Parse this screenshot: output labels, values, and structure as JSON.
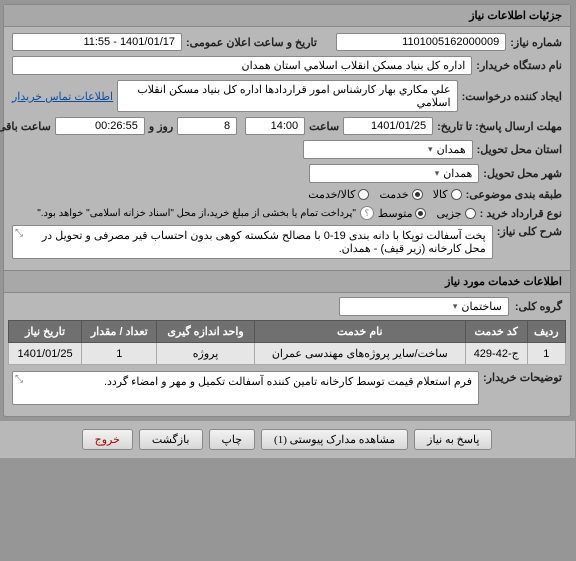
{
  "panel_title": "جزئیات اطلاعات نیاز",
  "rows": {
    "need_no_label": "شماره نیاز:",
    "need_no_value": "1101005162000009",
    "announce_label": "تاریخ و ساعت اعلان عمومی:",
    "announce_value": "1401/01/17 - 11:55",
    "buyer_label": "نام دستگاه خریدار:",
    "buyer_value": "اداره کل بنیاد مسکن انقلاب اسلامي استان همدان",
    "creator_label": "ایجاد کننده درخواست:",
    "creator_value": "علي مکاري بهار کارشناس امور قراردادها اداره کل بنیاد مسکن انقلاب اسلامي",
    "contact_link": "اطلاعات تماس خریدار",
    "deadline_label": "مهلت ارسال پاسخ: تا تاریخ:",
    "deadline_date": "1401/01/25",
    "time_label": "ساعت",
    "deadline_time": "14:00",
    "and_label": "و",
    "day_label": "روز",
    "remain_days": "8",
    "remain_time": "00:26:55",
    "remain_label": "ساعت باقی مانده",
    "province_label": "استان محل تحویل:",
    "province_value": "همدان",
    "city_label": "شهر محل تحویل:",
    "city_value": "همدان",
    "subject_type_label": "طبقه بندی موضوعی:",
    "radio_goods": "کالا",
    "radio_service": "خدمت",
    "radio_both": "کالا/خدمت",
    "contract_label": "نوع قرارداد خرید :",
    "radio_partial": "جزیی",
    "radio_medium": "متوسط",
    "contract_note": "\"پرداخت تمام یا بخشی از مبلغ خرید،از محل \"اسناد خزانه اسلامی\" خواهد بود.\"",
    "desc_label": "شرح کلی نیاز:",
    "desc_value": "پخت آسفالت توپکا با دانه بندی 19-0 با مصالح شکسته کوهی بدون احتساب قیر مصرفی و تحویل در محل کارخانه (زیر قیف) - همدان."
  },
  "services_title": "اطلاعات خدمات مورد نیاز",
  "group_label": "گروه کلی:",
  "group_value": "ساختمان",
  "table": {
    "columns": [
      "ردیف",
      "کد خدمت",
      "نام خدمت",
      "واحد اندازه گیری",
      "تعداد / مقدار",
      "تاریخ نیاز"
    ],
    "rows": [
      [
        "1",
        "ج-42-429",
        "ساخت/سایر پروژه‌های مهندسی عمران",
        "پروژه",
        "1",
        "1401/01/25"
      ]
    ]
  },
  "buyer_notes_label": "توضیحات خریدار:",
  "buyer_notes_value": "فرم استعلام قیمت توسط کارخانه تامین کننده آسفالت تکمیل و مهر و امضاء گردد.",
  "buttons": {
    "reply": "پاسخ به نیاز",
    "attachments": "مشاهده مدارک پیوستی (1)",
    "print": "چاپ",
    "back": "بازگشت",
    "exit": "خروج"
  },
  "colors": {
    "bg": "#969696",
    "panel": "#b8b8b8",
    "header": "#a8a8a8",
    "th_bg": "#707070",
    "link": "#0b4fa0"
  }
}
